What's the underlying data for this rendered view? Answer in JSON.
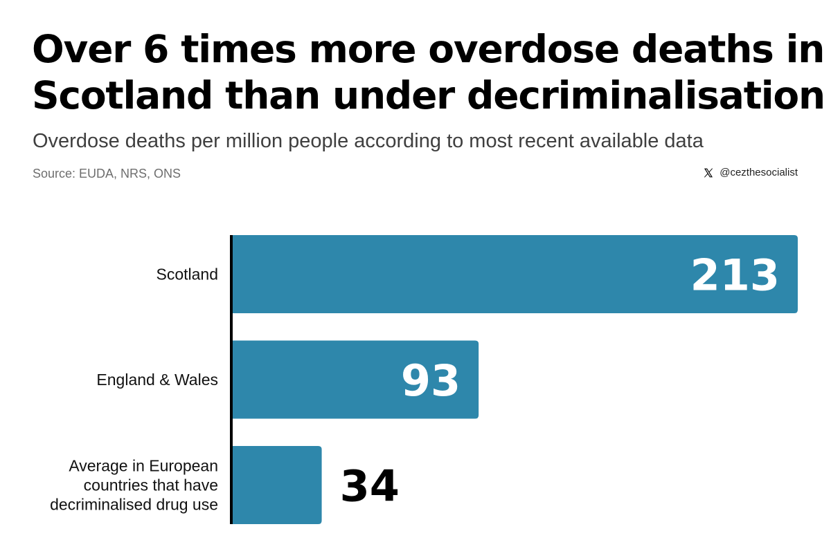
{
  "title_lines": [
    "Over 6 times more overdose deaths in",
    "Scotland than under decriminalisation"
  ],
  "subtitle": "Overdose deaths per million people according to most recent available data",
  "source": "Source: EUDA, NRS, ONS",
  "credit": {
    "icon": "x-logo-icon",
    "handle": "@cezthesocialist"
  },
  "colors": {
    "bar": "#2e87ab",
    "axis": "#000000",
    "label_inside": "#ffffff",
    "label_outside": "#000000"
  },
  "chart_data": {
    "type": "bar",
    "orientation": "horizontal",
    "title": "Over 6 times more overdose deaths in Scotland than under decriminalisation",
    "subtitle": "Overdose deaths per million people according to most recent available data",
    "categories": [
      [
        "Scotland"
      ],
      [
        "England & Wales"
      ],
      [
        "Average in European",
        "countries that have",
        "decriminalised drug use"
      ]
    ],
    "values": [
      213,
      93,
      34
    ],
    "xlim": [
      0,
      213
    ],
    "grid": false,
    "xlabel": "",
    "ylabel": ""
  }
}
